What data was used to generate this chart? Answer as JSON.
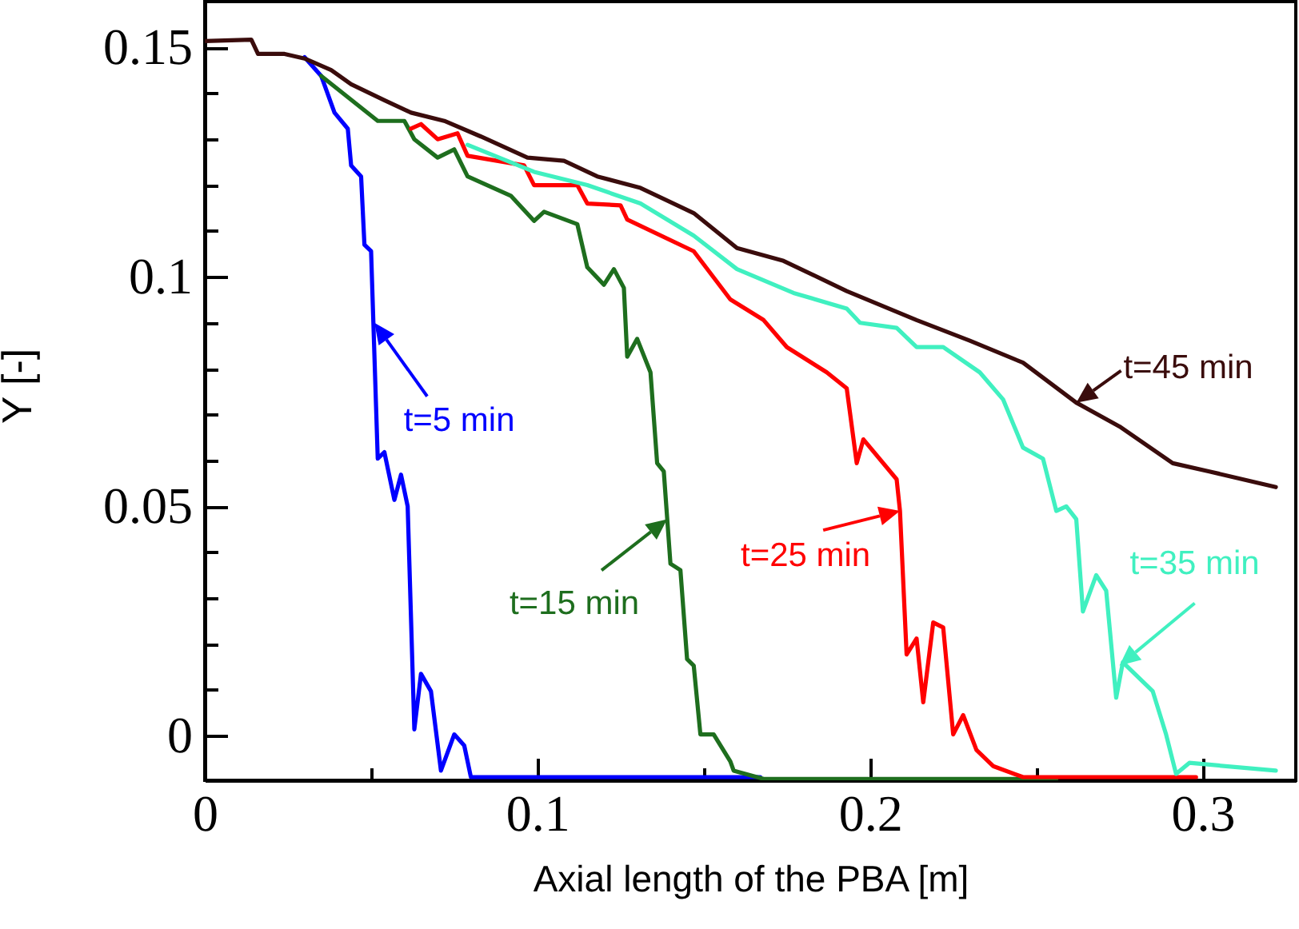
{
  "chart_data": {
    "type": "line",
    "xlabel": "Axial length of the PBA [m]",
    "ylabel": "Y [-]",
    "xlim": [
      0,
      0.328
    ],
    "ylim": [
      -0.0097,
      0.16
    ],
    "xticks": [
      0,
      {
        "value": 0.05,
        "label": null
      },
      0.1,
      {
        "value": 0.15,
        "label": null
      },
      0.2,
      {
        "value": 0.25,
        "label": null
      },
      0.3
    ],
    "yticks": [
      0,
      {
        "value": 0.01,
        "label": null
      },
      {
        "value": 0.02,
        "label": null
      },
      {
        "value": 0.03,
        "label": null
      },
      {
        "value": 0.04,
        "label": null
      },
      0.05,
      {
        "value": 0.06,
        "label": null
      },
      {
        "value": 0.07,
        "label": null
      },
      {
        "value": 0.08,
        "label": null
      },
      {
        "value": 0.09,
        "label": null
      },
      0.1,
      {
        "value": 0.11,
        "label": null
      },
      {
        "value": 0.12,
        "label": null
      },
      {
        "value": 0.13,
        "label": null
      },
      {
        "value": 0.14,
        "label": null
      },
      0.15
    ],
    "series": [
      {
        "color": "#0000ff",
        "x": [
          0.03,
          0.035,
          0.039,
          0.043,
          0.044,
          0.047,
          0.048,
          0.05,
          0.052,
          0.054,
          0.057,
          0.059,
          0.061,
          0.063,
          0.065,
          0.068,
          0.071,
          0.075,
          0.078,
          0.08,
          0.167
        ],
        "values": [
          0.1479,
          0.1438,
          0.1358,
          0.1323,
          0.1243,
          0.1219,
          0.107,
          0.1056,
          0.0604,
          0.0618,
          0.0514,
          0.0569,
          0.05,
          0.0014,
          0.0135,
          0.0097,
          -0.0076,
          0.0003,
          -0.0021,
          -0.009,
          -0.009
        ]
      },
      {
        "color": "#1e6e1e",
        "x": [
          0.035,
          0.052,
          0.06,
          0.063,
          0.07,
          0.075,
          0.079,
          0.092,
          0.099,
          0.102,
          0.112,
          0.115,
          0.12,
          0.123,
          0.126,
          0.127,
          0.13,
          0.134,
          0.136,
          0.138,
          0.14,
          0.143,
          0.145,
          0.147,
          0.149,
          0.153,
          0.158,
          0.159,
          0.168,
          0.256
        ],
        "values": [
          0.1438,
          0.134,
          0.134,
          0.13,
          0.126,
          0.1278,
          0.1219,
          0.1177,
          0.1122,
          0.1142,
          0.1115,
          0.1021,
          0.0983,
          0.1017,
          0.0976,
          0.0826,
          0.0865,
          0.0792,
          0.0594,
          0.0576,
          0.0375,
          0.0361,
          0.0167,
          0.0153,
          0.0003,
          0.0003,
          -0.0056,
          -0.0076,
          -0.0094,
          -0.0094
        ]
      },
      {
        "color": "#ff0000",
        "x": [
          0.062,
          0.065,
          0.07,
          0.076,
          0.079,
          0.096,
          0.099,
          0.112,
          0.115,
          0.125,
          0.127,
          0.147,
          0.158,
          0.168,
          0.175,
          0.187,
          0.193,
          0.196,
          0.198,
          0.208,
          0.209,
          0.211,
          0.214,
          0.216,
          0.219,
          0.222,
          0.225,
          0.228,
          0.232,
          0.237,
          0.246,
          0.298
        ],
        "values": [
          0.1323,
          0.1333,
          0.13,
          0.1313,
          0.1264,
          0.1243,
          0.12,
          0.12,
          0.116,
          0.1156,
          0.1125,
          0.1056,
          0.0951,
          0.0906,
          0.0847,
          0.0792,
          0.0757,
          0.0594,
          0.0646,
          0.0559,
          0.049,
          0.0177,
          0.0212,
          0.0073,
          0.0247,
          0.0236,
          0.0003,
          0.0045,
          -0.0031,
          -0.0066,
          -0.009,
          -0.009
        ]
      },
      {
        "color": "#40f0c0",
        "x": [
          0.079,
          0.099,
          0.115,
          0.131,
          0.147,
          0.16,
          0.177,
          0.193,
          0.197,
          0.208,
          0.214,
          0.222,
          0.233,
          0.24,
          0.246,
          0.252,
          0.256,
          0.259,
          0.262,
          0.264,
          0.268,
          0.271,
          0.274,
          0.276,
          0.285,
          0.289,
          0.292,
          0.296,
          0.322
        ],
        "values": [
          0.1288,
          0.1229,
          0.12,
          0.116,
          0.109,
          0.1017,
          0.0965,
          0.0931,
          0.09,
          0.0889,
          0.0847,
          0.0847,
          0.0792,
          0.0733,
          0.0628,
          0.0604,
          0.049,
          0.05,
          0.0472,
          0.0271,
          0.035,
          0.0316,
          0.0083,
          0.016,
          0.0097,
          0.0003,
          -0.0083,
          -0.0059,
          -0.0076
        ]
      },
      {
        "color": "#3a0c0c",
        "x": [
          0,
          0.014,
          0.016,
          0.024,
          0.03,
          0.038,
          0.044,
          0.054,
          0.062,
          0.072,
          0.083,
          0.097,
          0.108,
          0.118,
          0.131,
          0.147,
          0.16,
          0.174,
          0.193,
          0.214,
          0.23,
          0.246,
          0.262,
          0.275,
          0.291,
          0.302,
          0.322
        ],
        "values": [
          0.1514,
          0.1517,
          0.1486,
          0.1486,
          0.1476,
          0.1451,
          0.142,
          0.1385,
          0.1358,
          0.134,
          0.1306,
          0.126,
          0.1253,
          0.1219,
          0.1194,
          0.1139,
          0.1063,
          0.1035,
          0.0969,
          0.0906,
          0.0861,
          0.0813,
          0.0726,
          0.0674,
          0.0594,
          0.0576,
          0.0542
        ]
      }
    ],
    "annotations": [
      {
        "text": "t=5 min",
        "x": 0.051,
        "y": 0.09
      },
      {
        "text": "t=15 min",
        "x": 0.139,
        "y": 0.0472
      },
      {
        "text": "t=25 min",
        "x": 0.209,
        "y": 0.049
      },
      {
        "text": "t=35 min",
        "x": 0.275,
        "y": 0.0153
      },
      {
        "text": "t=45 min",
        "x": 0.262,
        "y": 0.0726
      }
    ]
  }
}
